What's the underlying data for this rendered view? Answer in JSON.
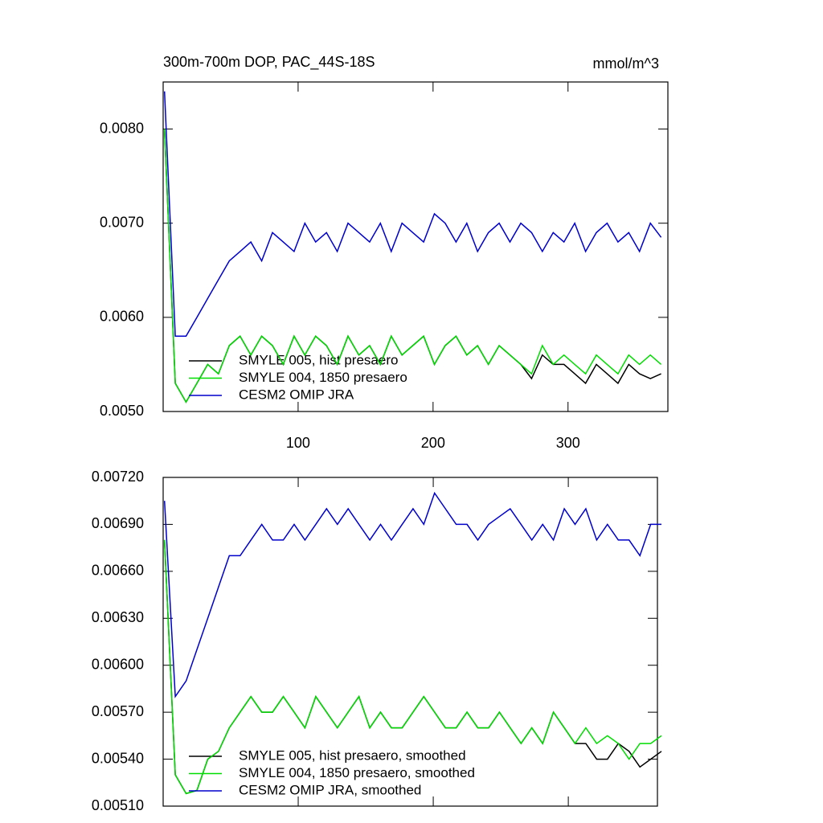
{
  "chart_data": [
    {
      "type": "line",
      "title": "300m-700m DOP, PAC_44S-18S",
      "units": "mmol/m^3",
      "x": [
        1,
        9,
        17,
        25,
        33,
        41,
        49,
        57,
        65,
        73,
        81,
        89,
        97,
        105,
        113,
        121,
        129,
        137,
        145,
        153,
        161,
        169,
        177,
        185,
        193,
        201,
        209,
        217,
        225,
        233,
        241,
        249,
        257,
        265,
        273,
        281,
        289,
        297,
        305,
        313,
        321,
        329,
        337,
        345,
        353,
        361,
        369
      ],
      "series": [
        {
          "name": "SMYLE 005, hist presaero",
          "color": "#000000",
          "values": [
            0.008,
            0.0053,
            0.0051,
            0.0053,
            0.0055,
            0.0054,
            0.0057,
            0.0058,
            0.0056,
            0.0058,
            0.0057,
            0.0055,
            0.0058,
            0.0056,
            0.0058,
            0.0057,
            0.0055,
            0.0058,
            0.0056,
            0.0057,
            0.0055,
            0.0058,
            0.0056,
            0.0057,
            0.0058,
            0.0055,
            0.0057,
            0.0058,
            0.0056,
            0.0057,
            0.0055,
            0.0057,
            0.0056,
            0.0055,
            0.00535,
            0.0056,
            0.0055,
            0.0055,
            0.0054,
            0.0053,
            0.0055,
            0.0054,
            0.0053,
            0.0055,
            0.0054,
            0.00535,
            0.0054
          ]
        },
        {
          "name": "SMYLE 004, 1850 presaero",
          "color": "#00dd00",
          "values": [
            0.008,
            0.0053,
            0.0051,
            0.0053,
            0.0055,
            0.0054,
            0.0057,
            0.0058,
            0.0056,
            0.0058,
            0.0057,
            0.0055,
            0.0058,
            0.0056,
            0.0058,
            0.0057,
            0.0055,
            0.0058,
            0.0056,
            0.0057,
            0.0055,
            0.0058,
            0.0056,
            0.0057,
            0.0058,
            0.0055,
            0.0057,
            0.0058,
            0.0056,
            0.0057,
            0.0055,
            0.0057,
            0.0056,
            0.0055,
            0.0054,
            0.0057,
            0.0055,
            0.0056,
            0.0055,
            0.0054,
            0.0056,
            0.0055,
            0.0054,
            0.0056,
            0.0055,
            0.0056,
            0.0055
          ]
        },
        {
          "name": "CESM2 OMIP JRA",
          "color": "#0000cc",
          "values": [
            0.0084,
            0.0058,
            0.0058,
            0.006,
            0.0062,
            0.0064,
            0.0066,
            0.0067,
            0.0068,
            0.0066,
            0.0069,
            0.0068,
            0.0067,
            0.007,
            0.0068,
            0.0069,
            0.0067,
            0.007,
            0.0069,
            0.0068,
            0.007,
            0.0067,
            0.007,
            0.0069,
            0.0068,
            0.0071,
            0.007,
            0.0068,
            0.007,
            0.0067,
            0.0069,
            0.007,
            0.0068,
            0.007,
            0.0069,
            0.0067,
            0.0069,
            0.0068,
            0.007,
            0.0067,
            0.0069,
            0.007,
            0.0068,
            0.0069,
            0.0067,
            0.007,
            0.00685
          ]
        }
      ],
      "xlim": [
        0,
        374
      ],
      "ylim": [
        0.005,
        0.0085
      ],
      "xticks": [
        100,
        200,
        300
      ],
      "xtick_labels": true,
      "yticks": [
        {
          "value": 0.005,
          "label": "0.0050"
        },
        {
          "value": 0.006,
          "label": "0.0060"
        },
        {
          "value": 0.007,
          "label": "0.0070"
        },
        {
          "value": 0.008,
          "label": "0.0080"
        }
      ]
    },
    {
      "type": "line",
      "x": [
        1,
        9,
        17,
        25,
        33,
        41,
        49,
        57,
        65,
        73,
        81,
        89,
        97,
        105,
        113,
        121,
        129,
        137,
        145,
        153,
        161,
        169,
        177,
        185,
        193,
        201,
        209,
        217,
        225,
        233,
        241,
        249,
        257,
        265,
        273,
        281,
        289,
        297,
        305,
        313,
        321,
        329,
        337,
        345,
        353,
        361,
        369
      ],
      "series": [
        {
          "name": "SMYLE 005, hist presaero, smoothed",
          "color": "#000000",
          "values": [
            0.0068,
            0.0053,
            0.00518,
            0.0052,
            0.0054,
            0.00545,
            0.0056,
            0.0057,
            0.0058,
            0.0057,
            0.0057,
            0.0058,
            0.0057,
            0.0056,
            0.0058,
            0.0057,
            0.0056,
            0.0057,
            0.0058,
            0.0056,
            0.0057,
            0.0056,
            0.0056,
            0.0057,
            0.0058,
            0.0057,
            0.0056,
            0.0056,
            0.0057,
            0.0056,
            0.0056,
            0.0057,
            0.0056,
            0.0055,
            0.0056,
            0.0055,
            0.0057,
            0.0056,
            0.0055,
            0.0055,
            0.0054,
            0.0054,
            0.0055,
            0.00545,
            0.00535,
            0.0054,
            0.00545
          ]
        },
        {
          "name": "SMYLE 004, 1850 presaero, smoothed",
          "color": "#00dd00",
          "values": [
            0.0068,
            0.0053,
            0.00518,
            0.0052,
            0.0054,
            0.00545,
            0.0056,
            0.0057,
            0.0058,
            0.0057,
            0.0057,
            0.0058,
            0.0057,
            0.0056,
            0.0058,
            0.0057,
            0.0056,
            0.0057,
            0.0058,
            0.0056,
            0.0057,
            0.0056,
            0.0056,
            0.0057,
            0.0058,
            0.0057,
            0.0056,
            0.0056,
            0.0057,
            0.0056,
            0.0056,
            0.0057,
            0.0056,
            0.0055,
            0.0056,
            0.0055,
            0.0057,
            0.0056,
            0.0055,
            0.0056,
            0.0055,
            0.00555,
            0.0055,
            0.0054,
            0.0055,
            0.0055,
            0.00555
          ]
        },
        {
          "name": "CESM2 OMIP JRA, smoothed",
          "color": "#0000cc",
          "values": [
            0.00705,
            0.0058,
            0.0059,
            0.0061,
            0.0063,
            0.0065,
            0.0067,
            0.0067,
            0.0068,
            0.0069,
            0.0068,
            0.0068,
            0.0069,
            0.0068,
            0.0069,
            0.007,
            0.0069,
            0.007,
            0.0069,
            0.0068,
            0.0069,
            0.0068,
            0.0069,
            0.007,
            0.0069,
            0.0071,
            0.007,
            0.0069,
            0.0069,
            0.0068,
            0.0069,
            0.00695,
            0.007,
            0.0069,
            0.0068,
            0.0069,
            0.0068,
            0.007,
            0.0069,
            0.007,
            0.0068,
            0.0069,
            0.0068,
            0.0068,
            0.0067,
            0.0069,
            0.0069
          ]
        }
      ],
      "xlim": [
        0,
        366
      ],
      "ylim": [
        0.0051,
        0.0072
      ],
      "xticks": [
        100,
        200,
        300
      ],
      "xtick_labels": false,
      "yticks": [
        {
          "value": 0.0051,
          "label": "0.00510"
        },
        {
          "value": 0.0054,
          "label": "0.00540"
        },
        {
          "value": 0.0057,
          "label": "0.00570"
        },
        {
          "value": 0.006,
          "label": "0.00600"
        },
        {
          "value": 0.0063,
          "label": "0.00630"
        },
        {
          "value": 0.0066,
          "label": "0.00660"
        },
        {
          "value": 0.0069,
          "label": "0.00690"
        },
        {
          "value": 0.0072,
          "label": "0.00720"
        }
      ]
    }
  ]
}
